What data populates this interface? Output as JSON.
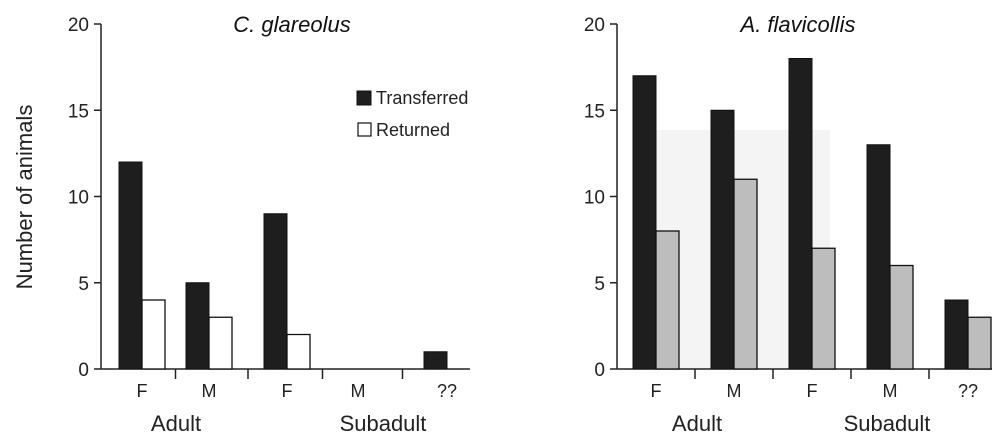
{
  "ylabel": "Number of animals",
  "legend": {
    "transferred_label": "Transferred",
    "returned_label": "Returned"
  },
  "colors": {
    "transferred": "#1e1e1e",
    "returned_left": "#ffffff",
    "returned_right": "#bdbdbd"
  },
  "chart_data": [
    {
      "type": "bar",
      "title": "C. glareolus",
      "ylabel": "Number of animals",
      "ylim": [
        0,
        20
      ],
      "yticks": [
        0,
        5,
        10,
        15,
        20
      ],
      "categories": [
        "F",
        "M",
        "F",
        "M",
        "??"
      ],
      "groups": [
        {
          "label": "Adult",
          "span": [
            0,
            1
          ]
        },
        {
          "label": "Subadult",
          "span": [
            2,
            4
          ]
        }
      ],
      "series": [
        {
          "name": "Transferred",
          "values": [
            12,
            5,
            9,
            0,
            1
          ]
        },
        {
          "name": "Returned",
          "values": [
            4,
            3,
            2,
            0,
            0
          ]
        }
      ],
      "legend_position": "top-right"
    },
    {
      "type": "bar",
      "title": "A. flavicollis",
      "ylim": [
        0,
        20
      ],
      "yticks": [
        0,
        5,
        10,
        15,
        20
      ],
      "categories": [
        "F",
        "M",
        "F",
        "M",
        "??"
      ],
      "groups": [
        {
          "label": "Adult",
          "span": [
            0,
            1
          ]
        },
        {
          "label": "Subadult",
          "span": [
            2,
            4
          ]
        }
      ],
      "series": [
        {
          "name": "Transferred",
          "values": [
            17,
            15,
            18,
            13,
            4
          ]
        },
        {
          "name": "Returned",
          "values": [
            8,
            11,
            7,
            6,
            3
          ]
        }
      ]
    }
  ]
}
